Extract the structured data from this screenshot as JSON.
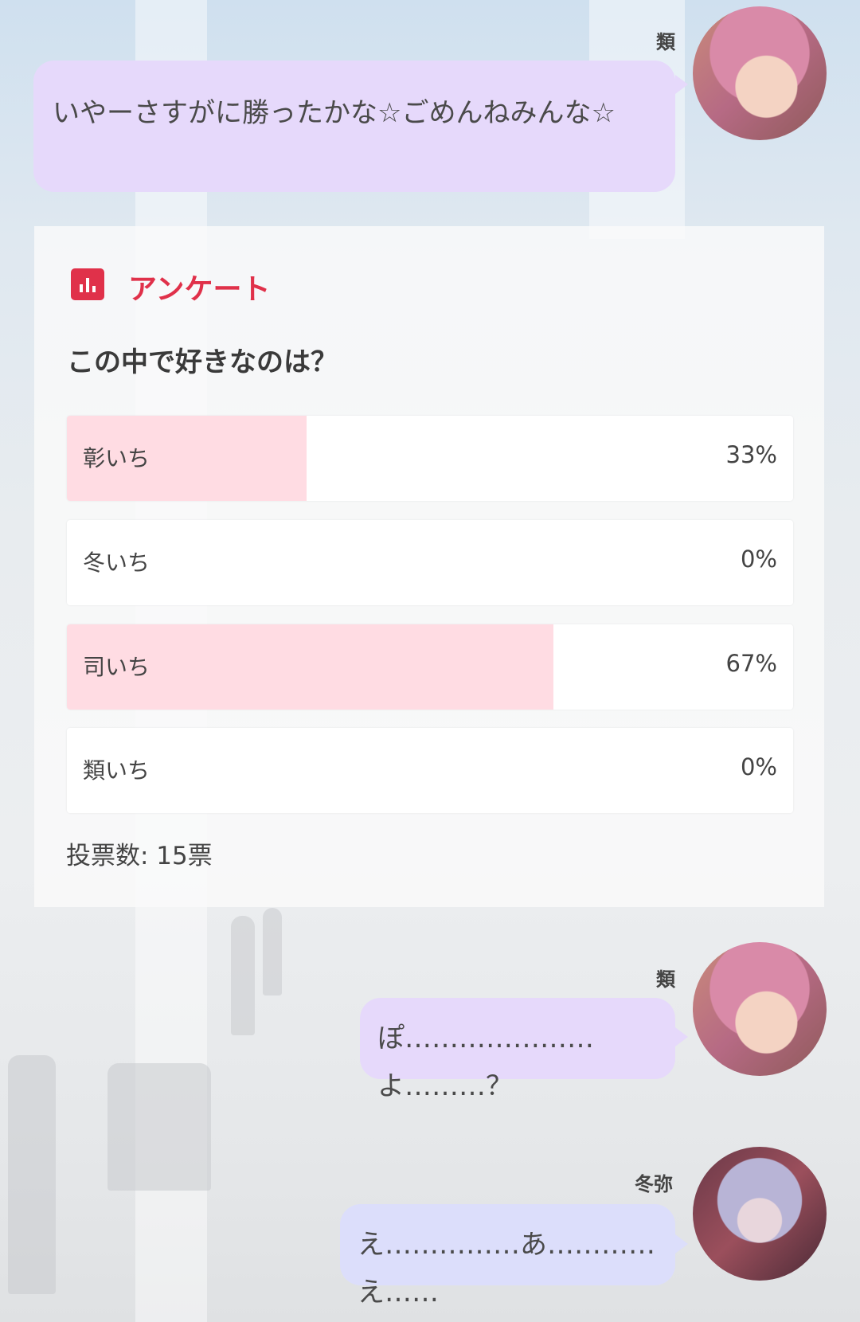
{
  "messages": [
    {
      "sender": "類",
      "text": "いやーさすがに勝ったかな☆ごめんねみんな☆"
    },
    {
      "sender": "類",
      "text": "ぽ…………………よ………？"
    },
    {
      "sender": "冬弥",
      "text": "え……………あ…………え……"
    }
  ],
  "poll": {
    "icon": "bar-chart-icon",
    "title": "アンケート",
    "question": "この中で好きなのは？",
    "options": [
      {
        "label": "彰いち",
        "percent_text": "33%",
        "percent": 33
      },
      {
        "label": "冬いち",
        "percent_text": "0%",
        "percent": 0
      },
      {
        "label": "司いち",
        "percent_text": "67%",
        "percent": 67
      },
      {
        "label": "類いち",
        "percent_text": "0%",
        "percent": 0
      }
    ],
    "votes": "投票数: 15票"
  },
  "colors": {
    "accent": "#e0314a",
    "bar_fill": "#ffdce3",
    "bubble_rui": "#e6d9fb",
    "bubble_toya": "#dcdefb"
  }
}
